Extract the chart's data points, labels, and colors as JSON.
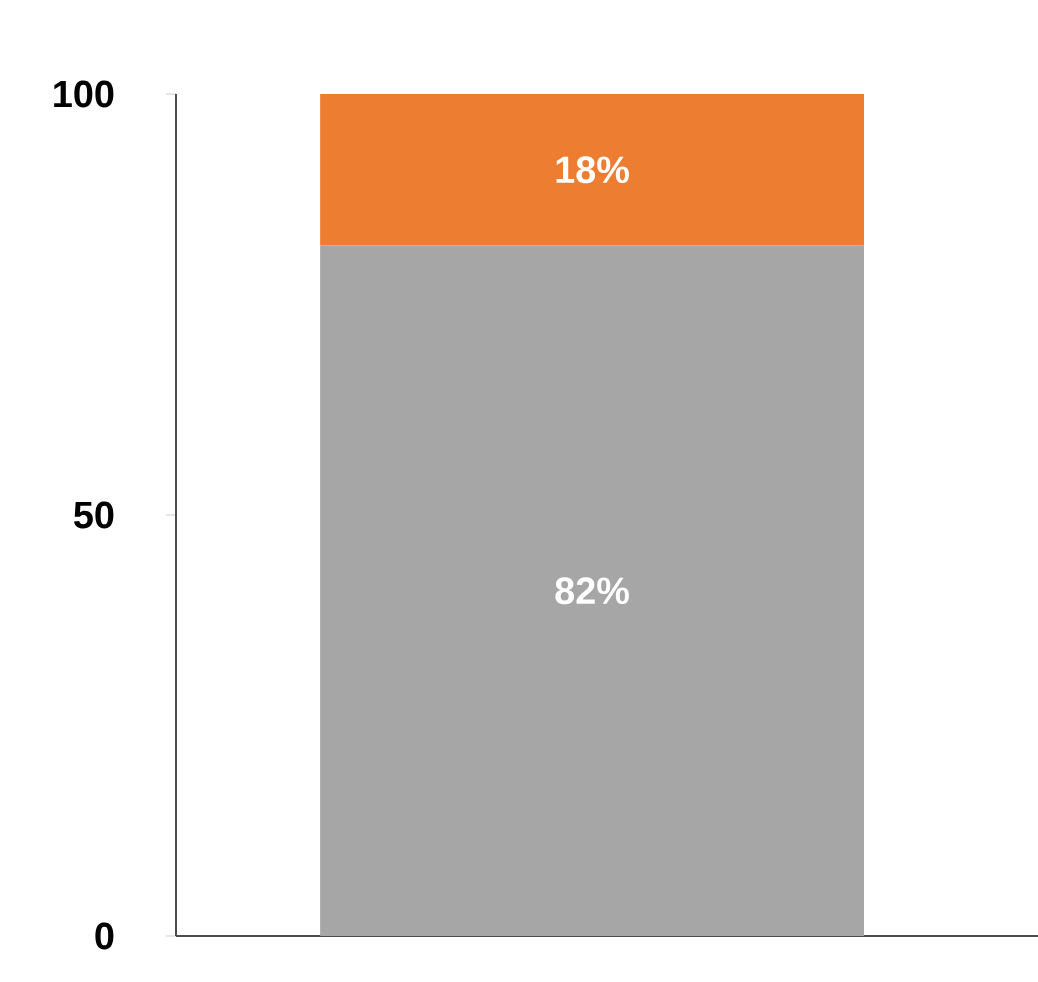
{
  "chart_data": {
    "type": "bar",
    "stacked": true,
    "categories": [
      null
    ],
    "series": [
      {
        "color": "#a6a6a6",
        "values": [
          82
        ],
        "value_labels": [
          "82%"
        ]
      },
      {
        "color": "#ed7d31",
        "values": [
          18
        ],
        "value_labels": [
          "18%"
        ]
      }
    ],
    "ylim": [
      0,
      100
    ],
    "yticks": [
      0,
      50,
      100
    ]
  }
}
